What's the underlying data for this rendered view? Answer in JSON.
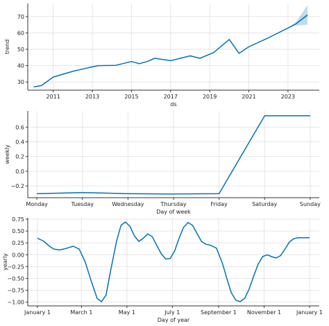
{
  "chart_data": [
    {
      "type": "line",
      "xlabel": "ds",
      "ylabel": "trend",
      "x_ticks": [
        "2011",
        "2013",
        "2015",
        "2017",
        "2019",
        "2021",
        "2023"
      ],
      "x_tick_values": [
        2011,
        2013,
        2015,
        2017,
        2019,
        2021,
        2023
      ],
      "y_ticks": [
        "30",
        "40",
        "50",
        "60",
        "70"
      ],
      "y_tick_values": [
        30,
        40,
        50,
        60,
        70
      ],
      "xlim": [
        2009.7,
        2024.6
      ],
      "ylim": [
        25,
        78
      ],
      "grid": true,
      "series": [
        {
          "x": [
            2010.0,
            2010.4,
            2011.0,
            2012.0,
            2012.7,
            2013.3,
            2014.2,
            2015.0,
            2015.4,
            2015.8,
            2016.2,
            2017.0,
            2017.5,
            2018.0,
            2018.5,
            2019.2,
            2020.0,
            2020.5,
            2021.0,
            2022.0,
            2023.0,
            2023.4,
            2024.0
          ],
          "values": [
            27.0,
            27.8,
            33.0,
            36.5,
            38.5,
            40.0,
            40.2,
            42.5,
            41.2,
            42.5,
            44.5,
            43.0,
            44.5,
            46.0,
            44.5,
            48.0,
            56.0,
            47.5,
            51.5,
            57.0,
            63.0,
            65.5,
            71.0
          ]
        }
      ],
      "uncertainty": {
        "x": [
          2023.0,
          2023.4,
          2024.0
        ],
        "lower": [
          63.0,
          64.5,
          65.0
        ],
        "upper": [
          63.0,
          66.5,
          77.0
        ]
      }
    },
    {
      "type": "line",
      "xlabel": "Day of week",
      "ylabel": "weekly",
      "categories": [
        "Monday",
        "Tuesday",
        "Wednesday",
        "Thursday",
        "Friday",
        "Saturday",
        "Sunday"
      ],
      "y_ticks": [
        "−0.2",
        "0.0",
        "0.2",
        "0.4",
        "0.6"
      ],
      "y_tick_values": [
        -0.2,
        0.0,
        0.2,
        0.4,
        0.6
      ],
      "ylim": [
        -0.36,
        0.82
      ],
      "grid": true,
      "series": [
        {
          "values": [
            -0.305,
            -0.29,
            -0.305,
            -0.31,
            -0.305,
            0.755,
            0.755
          ]
        }
      ]
    },
    {
      "type": "line",
      "xlabel": "Day of year",
      "ylabel": "yearly",
      "x_ticks": [
        "January 1",
        "March 1",
        "May 1",
        "July 1",
        "September 1",
        "November 1",
        "January 1"
      ],
      "x_tick_values": [
        0,
        59,
        120,
        181,
        243,
        304,
        365
      ],
      "y_ticks": [
        "−1.00",
        "−0.75",
        "−0.50",
        "−0.25",
        "0.00",
        "0.25",
        "0.50",
        "0.75"
      ],
      "y_tick_values": [
        -1.0,
        -0.75,
        -0.5,
        -0.25,
        0.0,
        0.25,
        0.5,
        0.75
      ],
      "xlim": [
        -13,
        378
      ],
      "ylim": [
        -1.08,
        0.78
      ],
      "grid": true,
      "series": [
        {
          "x": [
            0,
            8,
            16,
            22,
            30,
            40,
            48,
            56,
            64,
            72,
            80,
            86,
            92,
            98,
            106,
            112,
            118,
            124,
            130,
            136,
            142,
            148,
            154,
            160,
            166,
            172,
            178,
            184,
            190,
            196,
            202,
            208,
            214,
            220,
            226,
            232,
            240,
            248,
            254,
            260,
            266,
            272,
            278,
            284,
            290,
            296,
            302,
            308,
            314,
            320,
            326,
            332,
            338,
            344,
            350,
            356,
            362,
            365
          ],
          "values": [
            0.35,
            0.29,
            0.18,
            0.12,
            0.1,
            0.14,
            0.18,
            0.12,
            -0.15,
            -0.55,
            -0.92,
            -0.99,
            -0.85,
            -0.35,
            0.28,
            0.62,
            0.69,
            0.6,
            0.4,
            0.28,
            0.35,
            0.44,
            0.38,
            0.2,
            0.02,
            -0.09,
            -0.08,
            0.08,
            0.35,
            0.58,
            0.68,
            0.62,
            0.45,
            0.28,
            0.22,
            0.2,
            0.14,
            -0.18,
            -0.5,
            -0.8,
            -0.96,
            -0.99,
            -0.92,
            -0.72,
            -0.45,
            -0.2,
            -0.04,
            0.0,
            -0.04,
            -0.07,
            -0.02,
            0.12,
            0.27,
            0.34,
            0.36,
            0.36,
            0.36,
            0.36
          ]
        }
      ]
    }
  ],
  "style": {
    "line_color": "#0072b2",
    "band_color": "#0072b2",
    "grid_color": "#e5e5e5",
    "axis_color": "#333333"
  }
}
